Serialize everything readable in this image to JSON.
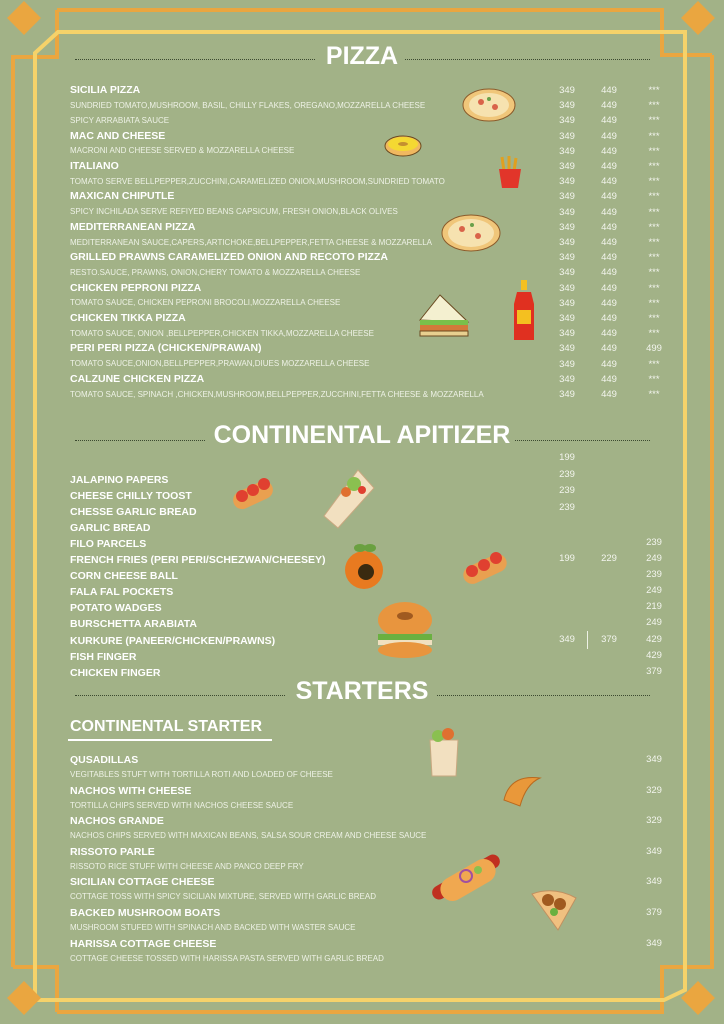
{
  "colors": {
    "background": "#a2b287",
    "frame_outer": "#eaa640",
    "frame_inner": "#f5d26a",
    "text": "#ffffff"
  },
  "pizza": {
    "title": "PIZZA",
    "lines": [
      {
        "type": "name",
        "text": "SICILIA PIZZA",
        "prices": [
          "349",
          "449",
          "***"
        ]
      },
      {
        "type": "desc",
        "text": "SUNDRIED TOMATO,MUSHROOM, BASIL, CHILLY FLAKES, OREGANO,MOZZARELLA CHEESE",
        "prices": [
          "349",
          "449",
          "***"
        ]
      },
      {
        "type": "desc",
        "text": "SPICY ARRABIATA SAUCE",
        "prices": [
          "349",
          "449",
          "***"
        ]
      },
      {
        "type": "name",
        "text": "MAC AND CHEESE",
        "prices": [
          "349",
          "449",
          "***"
        ]
      },
      {
        "type": "desc",
        "text": "MACRONI AND CHEESE SERVED & MOZZARELLA CHEESE",
        "prices": [
          "349",
          "449",
          "***"
        ]
      },
      {
        "type": "name",
        "text": "ITALIANO",
        "prices": [
          "349",
          "449",
          "***"
        ]
      },
      {
        "type": "desc",
        "text": "TOMATO SERVE BELLPEPPER,ZUCCHINI,CARAMELIZED ONION,MUSHROOM,SUNDRIED TOMATO",
        "prices": [
          "349",
          "449",
          "***"
        ]
      },
      {
        "type": "name",
        "text": "MAXICAN CHIPUTLE",
        "prices": [
          "349",
          "449",
          "***"
        ]
      },
      {
        "type": "desc",
        "text": "SPICY INCHILADA SERVE REFIYED BEANS CAPSICUM, FRESH ONION,BLACK OLIVES",
        "prices": [
          "349",
          "449",
          "***"
        ]
      },
      {
        "type": "name",
        "text": "MEDITERRANEAN PIZZA",
        "prices": [
          "349",
          "449",
          "***"
        ]
      },
      {
        "type": "desc",
        "text": "MEDITERRANEAN SAUCE,CAPERS,ARTICHOKE,BELLPEPPER,FETTA CHEESE & MOZZARELLA",
        "prices": [
          "349",
          "449",
          "***"
        ]
      },
      {
        "type": "name",
        "text": "GRILLED PRAWNS CARAMELIZED ONION AND RECOTO PIZZA",
        "prices": [
          "349",
          "449",
          "***"
        ]
      },
      {
        "type": "desc",
        "text": "RESTO.SAUCE, PRAWNS, ONION,CHERY TOMATO & MOZZARELLA CHEESE",
        "prices": [
          "349",
          "449",
          "***"
        ]
      },
      {
        "type": "name",
        "text": "CHICKEN PEPRONI PIZZA",
        "prices": [
          "349",
          "449",
          "***"
        ]
      },
      {
        "type": "desc",
        "text": "TOMATO SAUCE, CHICKEN PEPRONI BROCOLI,MOZZARELLA CHEESE",
        "prices": [
          "349",
          "449",
          "***"
        ]
      },
      {
        "type": "name",
        "text": "CHICKEN TIKKA PIZZA",
        "prices": [
          "349",
          "449",
          "***"
        ]
      },
      {
        "type": "desc",
        "text": "TOMATO SAUCE, ONION ,BELLPEPPER,CHICKEN TIKKA,MOZZARELLA CHEESE",
        "prices": [
          "349",
          "449",
          "***"
        ]
      },
      {
        "type": "name",
        "text": "PERI PERI PIZZA (CHICKEN/PRAWAN)",
        "prices": [
          "349",
          "449",
          "499"
        ]
      },
      {
        "type": "desc",
        "text": "TOMATO SAUCE,ONION,BELLPEPPER,PRAWAN,DIUES MOZZARELLA CHEESE",
        "prices": [
          "349",
          "449",
          "***"
        ]
      },
      {
        "type": "name",
        "text": "CALZUNE CHICKEN PIZZA",
        "prices": [
          "349",
          "449",
          "***"
        ]
      },
      {
        "type": "desc",
        "text": "TOMATO SAUCE, SPINACH ,CHICKEN,MUSHROOM,BELLPEPPER,ZUCCHINI,FETTA CHEESE & MOZZARELLA",
        "prices": [
          "349",
          "449",
          "***"
        ]
      }
    ]
  },
  "apitizer": {
    "title": "CONTINENTAL APITIZER",
    "top_prices": [
      "199",
      "239",
      "239",
      "239"
    ],
    "items": [
      {
        "name": "JALAPINO PAPERS",
        "prices": [
          "",
          "",
          ""
        ]
      },
      {
        "name": "CHEESE CHILLY TOOST",
        "prices": [
          "",
          "",
          ""
        ]
      },
      {
        "name": "CHESSE GARLIC BREAD",
        "prices": [
          "",
          "",
          ""
        ]
      },
      {
        "name": "GARLIC BREAD",
        "prices": [
          "",
          "",
          ""
        ]
      },
      {
        "name": "FILO PARCELS",
        "prices": [
          "",
          "",
          "239"
        ]
      },
      {
        "name": "FRENCH FRIES (PERI PERI/SCHEZWAN/CHEESEY)",
        "prices": [
          "199",
          "229",
          "249"
        ]
      },
      {
        "name": "CORN CHEESE BALL",
        "prices": [
          "",
          "",
          "239"
        ]
      },
      {
        "name": "FALA FAL POCKETS",
        "prices": [
          "",
          "",
          "249"
        ]
      },
      {
        "name": "POTATO WADGES",
        "prices": [
          "",
          "",
          "219"
        ]
      },
      {
        "name": "BURSCHETTA ARABIATA",
        "prices": [
          "",
          "",
          "249"
        ]
      },
      {
        "name": "KURKURE (PANEER/CHICKEN/PRAWNS)",
        "prices": [
          "349",
          "379",
          "429"
        ]
      },
      {
        "name": "FISH FINGER",
        "prices": [
          "",
          "",
          "429"
        ]
      },
      {
        "name": "CHICKEN FINGER",
        "prices": [
          "",
          "",
          "379"
        ]
      }
    ]
  },
  "starters": {
    "title": "STARTERS",
    "subtitle": "CONTINENTAL STARTER",
    "items": [
      {
        "name": "QUSADILLAS",
        "desc": "VEGITABLES STUFT WITH TORTILLA ROTI AND LOADED OF CHEESE",
        "price": "349"
      },
      {
        "name": "NACHOS WITH CHEESE",
        "desc": "TORTILLA CHIPS SERVED WITH NACHOS CHEESE SAUCE",
        "price": "329"
      },
      {
        "name": "NACHOS GRANDE",
        "desc": "NACHOS CHIPS SERVED WITH MAXICAN BEANS, SALSA SOUR CREAM AND CHEESE SAUCE",
        "price": "329"
      },
      {
        "name": "RISSOTO PARLE",
        "desc": "RISSOTO RICE STUFF WITH CHEESE AND PANCO DEEP FRY",
        "price": "349"
      },
      {
        "name": "SICILIAN COTTAGE CHEESE",
        "desc": "COTTAGE TOSS WITH SPICY SICILIAN MIXTURE, SERVED WITH GARLIC BREAD",
        "price": "349"
      },
      {
        "name": "BACKED MUSHROOM BOATS",
        "desc": "MUSHROOM STUFED WITH SPINACH AND BACKED WITH WASTER SAUCE",
        "price": "379"
      },
      {
        "name": "HARISSA COTTAGE CHEESE",
        "desc": "COTTAGE CHEESE TOSSED WITH HARISSA PASTA SERVED WITH GARLIC BREAD",
        "price": "349"
      }
    ]
  },
  "icons": [
    "pizza-icon",
    "donut-icon",
    "fries-icon",
    "sandwich-icon",
    "sauce-bottle-icon",
    "wrap-icon",
    "sub-sandwich-icon",
    "arancini-icon",
    "burger-icon",
    "croissant-icon",
    "hotdog-icon",
    "falafel-pita-icon"
  ]
}
